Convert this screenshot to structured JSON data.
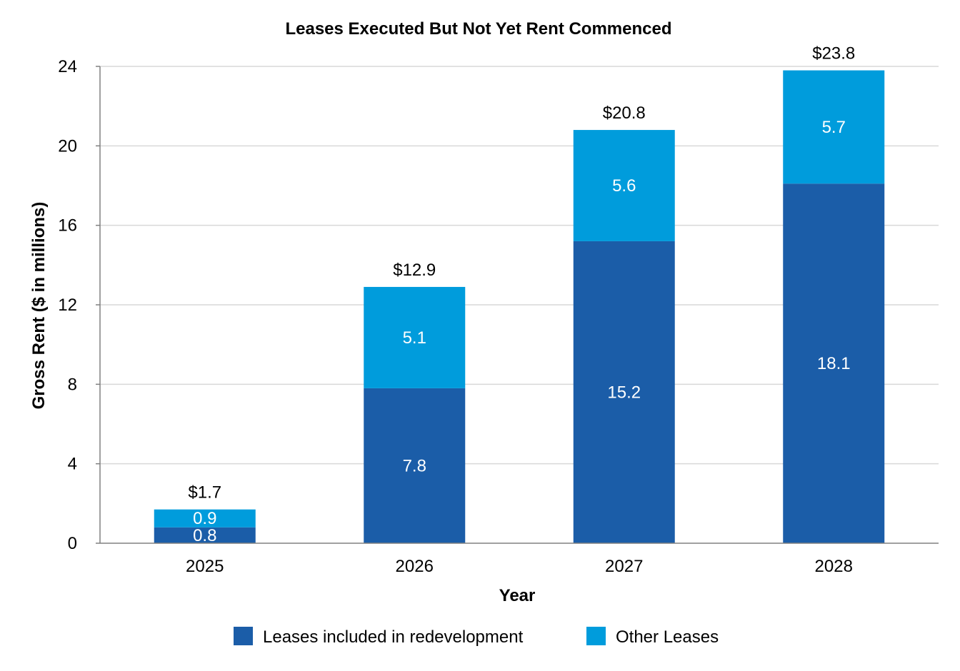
{
  "chart_data": {
    "type": "bar",
    "stacked": true,
    "title": "Leases Executed But Not Yet Rent Commenced",
    "xlabel": "Year",
    "ylabel": "Gross Rent ($ in millions)",
    "categories": [
      "2025",
      "2026",
      "2027",
      "2028"
    ],
    "series": [
      {
        "name": "Leases included in redevelopment",
        "values": [
          0.8,
          7.8,
          15.2,
          18.1
        ],
        "labels": [
          "0.8",
          "7.8",
          "15.2",
          "18.1"
        ],
        "color": "#1B5DA8"
      },
      {
        "name": "Other Leases",
        "values": [
          0.9,
          5.1,
          5.6,
          5.7
        ],
        "labels": [
          "0.9",
          "5.1",
          "5.6",
          "5.7"
        ],
        "color": "#009CDC"
      }
    ],
    "totals": [
      "$1.7",
      "$12.9",
      "$20.8",
      "$23.8"
    ],
    "total_values": [
      1.7,
      12.9,
      20.8,
      23.8
    ],
    "ylim": [
      0,
      24
    ],
    "yticks": [
      "0",
      "4",
      "8",
      "12",
      "16",
      "20",
      "24"
    ],
    "grid": true,
    "legend_position": "bottom",
    "gridline_color": "#D9D9D9",
    "axis_color": "#808080"
  }
}
